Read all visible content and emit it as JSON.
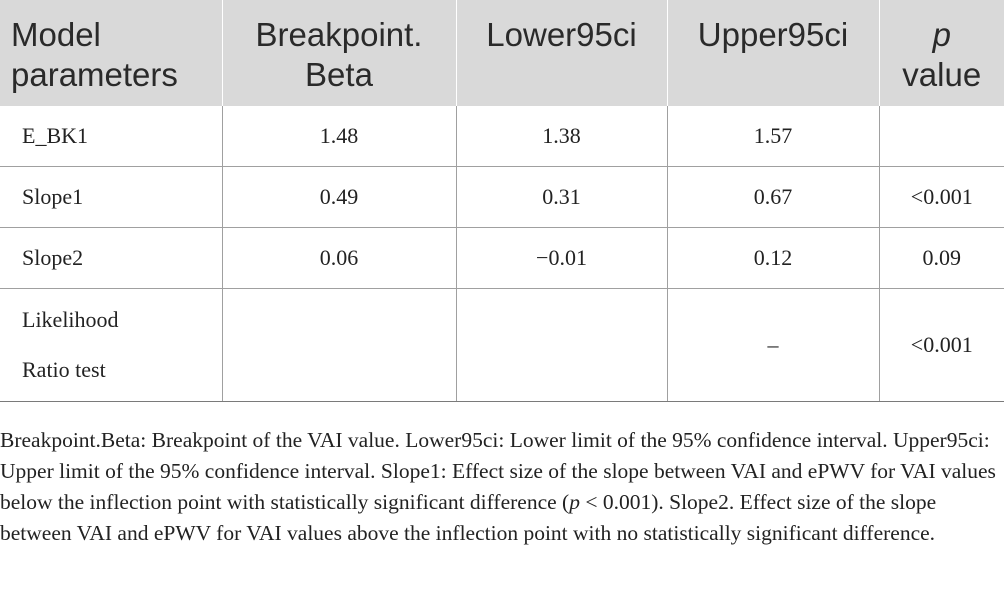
{
  "table": {
    "headers": [
      {
        "lines": [
          "Model",
          "parameters"
        ]
      },
      {
        "lines": [
          "Breakpoint.",
          "Beta"
        ]
      },
      {
        "lines": [
          "Lower95ci"
        ]
      },
      {
        "lines": [
          "Upper95ci"
        ]
      },
      {
        "italic": "p",
        "lines": [
          "value"
        ]
      }
    ],
    "rows": [
      {
        "label": "E_BK1",
        "beta": "1.48",
        "lower": "1.38",
        "upper": "1.57",
        "p": ""
      },
      {
        "label": "Slope1",
        "beta": "0.49",
        "lower": "0.31",
        "upper": "0.67",
        "p": "<0.001"
      },
      {
        "label": "Slope2",
        "beta": "0.06",
        "lower": "−0.01",
        "upper": "0.12",
        "p": "0.09"
      },
      {
        "label_lines": [
          "Likelihood",
          "Ratio test"
        ],
        "beta": "",
        "lower": "",
        "upper": "–",
        "p": "<0.001"
      }
    ]
  },
  "footnote": {
    "part1": "Breakpoint.Beta: Breakpoint of the VAI value. Lower95ci: Lower limit of the 95% confidence interval. Upper95ci: Upper limit of the 95% confidence interval. Slope1: Effect size of the slope between VAI and ePWV for VAI values below the inflection point with statistically significant difference (",
    "p_symbol": "p",
    "part2": " < 0.001). Slope2. Effect size of the slope between VAI and ePWV for VAI values above the inflection point with no statistically significant difference."
  }
}
